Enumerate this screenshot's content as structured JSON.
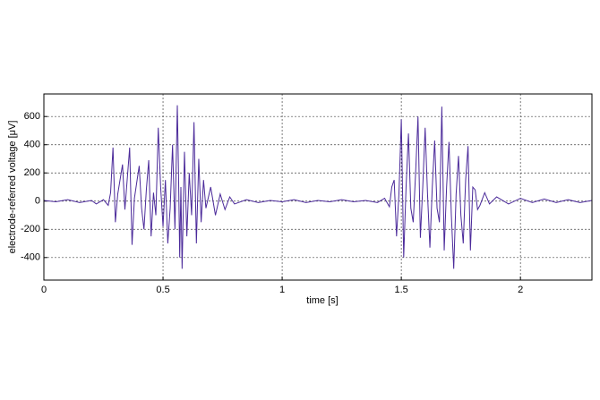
{
  "chart_data": {
    "type": "line",
    "xlabel": "time [s]",
    "ylabel": "electrode-referred voltage [μV]",
    "xlim": [
      0,
      2.3
    ],
    "ylim": [
      -560,
      760
    ],
    "xticks": [
      0,
      0.5,
      1,
      1.5,
      2
    ],
    "yticks": [
      -400,
      -200,
      0,
      200,
      400,
      600
    ],
    "grid": true,
    "x": [
      0,
      0.05,
      0.1,
      0.15,
      0.2,
      0.22,
      0.25,
      0.27,
      0.28,
      0.29,
      0.3,
      0.31,
      0.33,
      0.34,
      0.36,
      0.37,
      0.38,
      0.4,
      0.41,
      0.42,
      0.43,
      0.44,
      0.45,
      0.46,
      0.47,
      0.48,
      0.49,
      0.5,
      0.51,
      0.52,
      0.53,
      0.54,
      0.55,
      0.56,
      0.565,
      0.57,
      0.575,
      0.58,
      0.59,
      0.6,
      0.61,
      0.62,
      0.63,
      0.64,
      0.65,
      0.66,
      0.67,
      0.68,
      0.7,
      0.72,
      0.74,
      0.76,
      0.78,
      0.8,
      0.85,
      0.9,
      0.95,
      1.0,
      1.05,
      1.1,
      1.15,
      1.2,
      1.25,
      1.3,
      1.35,
      1.4,
      1.43,
      1.45,
      1.46,
      1.47,
      1.48,
      1.49,
      1.5,
      1.51,
      1.52,
      1.53,
      1.54,
      1.55,
      1.56,
      1.57,
      1.58,
      1.59,
      1.6,
      1.61,
      1.62,
      1.63,
      1.64,
      1.65,
      1.66,
      1.67,
      1.68,
      1.69,
      1.7,
      1.71,
      1.72,
      1.73,
      1.74,
      1.75,
      1.76,
      1.77,
      1.78,
      1.79,
      1.8,
      1.81,
      1.82,
      1.83,
      1.85,
      1.87,
      1.9,
      1.95,
      2.0,
      2.05,
      2.1,
      2.15,
      2.2,
      2.25,
      2.3
    ],
    "series": [
      {
        "color": "#4b2a9a",
        "values": [
          5,
          -5,
          10,
          -10,
          5,
          -20,
          10,
          -30,
          60,
          380,
          -150,
          50,
          260,
          -60,
          380,
          -310,
          20,
          250,
          -50,
          -200,
          80,
          290,
          -250,
          60,
          -100,
          520,
          100,
          -180,
          150,
          -300,
          -50,
          400,
          -200,
          680,
          200,
          -400,
          100,
          -480,
          350,
          -250,
          200,
          -100,
          560,
          -300,
          300,
          -150,
          150,
          -50,
          100,
          -100,
          50,
          -60,
          30,
          -20,
          10,
          -10,
          5,
          -5,
          10,
          -10,
          5,
          -5,
          10,
          -5,
          5,
          -10,
          20,
          -40,
          100,
          150,
          -250,
          50,
          580,
          -400,
          100,
          480,
          -50,
          -150,
          200,
          600,
          -260,
          100,
          520,
          50,
          -330,
          100,
          430,
          -50,
          -150,
          670,
          -350,
          100,
          420,
          -100,
          -480,
          50,
          320,
          -100,
          -300,
          150,
          390,
          -350,
          100,
          80,
          -60,
          -30,
          60,
          -20,
          30,
          -20,
          20,
          -10,
          15,
          -10,
          10,
          -10,
          5
        ]
      }
    ]
  }
}
